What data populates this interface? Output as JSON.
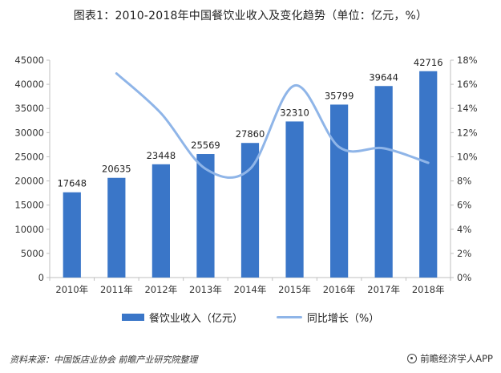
{
  "title": "图表1：2010-2018年中国餐饮业收入及变化趋势（单位：亿元，%）",
  "source": "资料来源：中国饭店业协会 前瞻产业研究院整理",
  "brand": "前瞻经济学人APP",
  "colors": {
    "bar": "#3a76c8",
    "line": "#8fb5e8",
    "axis": "#bfbfbf"
  },
  "chart_data": {
    "type": "bar+line",
    "title": "图表1：2010-2018年中国餐饮业收入及变化趋势（单位：亿元，%）",
    "categories": [
      "2010年",
      "2011年",
      "2012年",
      "2013年",
      "2014年",
      "2015年",
      "2016年",
      "2017年",
      "2018年"
    ],
    "series": [
      {
        "name": "餐饮业收入（亿元）",
        "type": "bar",
        "axis": "left",
        "values": [
          17648,
          20635,
          23448,
          25569,
          27860,
          32310,
          35799,
          39644,
          42716
        ],
        "labels": [
          "17648",
          "20635",
          "23448",
          "25569",
          "27860",
          "32310",
          "35799",
          "39644",
          "42716"
        ]
      },
      {
        "name": "同比增长（%）",
        "type": "line",
        "smooth": true,
        "axis": "right",
        "values": [
          null,
          16.9,
          13.6,
          9.0,
          9.0,
          15.9,
          10.8,
          10.7,
          9.5
        ]
      }
    ],
    "y_left": {
      "min": 0,
      "max": 45000,
      "ticks": [
        0,
        5000,
        10000,
        15000,
        20000,
        25000,
        30000,
        35000,
        40000,
        45000
      ],
      "tick_labels": [
        "0",
        "5000",
        "10000",
        "15000",
        "20000",
        "25000",
        "30000",
        "35000",
        "40000",
        "45000"
      ]
    },
    "y_right": {
      "min": 0,
      "max": 18,
      "ticks": [
        0,
        2,
        4,
        6,
        8,
        10,
        12,
        14,
        16,
        18
      ],
      "tick_labels": [
        "0%",
        "2%",
        "4%",
        "6%",
        "8%",
        "10%",
        "12%",
        "14%",
        "16%",
        "18%"
      ]
    },
    "legend": {
      "position": "bottom",
      "items": [
        "餐饮业收入（亿元）",
        "同比增长（%）"
      ]
    },
    "grid": false
  }
}
